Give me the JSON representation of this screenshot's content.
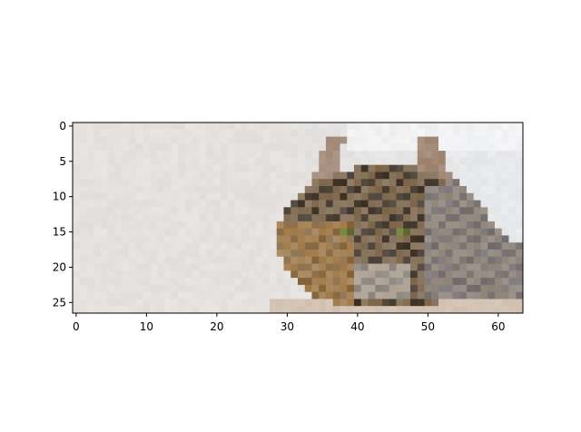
{
  "figure": {
    "image_grid": {
      "columns": 64,
      "rows": 27
    },
    "x_axis": {
      "range": [
        -0.5,
        63.5
      ],
      "ticks": [
        0,
        10,
        20,
        30,
        40,
        50,
        60
      ],
      "tick_labels": [
        "0",
        "10",
        "20",
        "30",
        "40",
        "50",
        "60"
      ]
    },
    "y_axis": {
      "range": [
        -0.5,
        26.5
      ],
      "inverted": true,
      "ticks": [
        0,
        5,
        10,
        15,
        20,
        25
      ],
      "tick_labels": [
        "0",
        "5",
        "10",
        "15",
        "20",
        "25"
      ]
    },
    "subject": "cat-photo",
    "colors": {
      "background_light": "#e4e1de",
      "background_right": "#e8eaee",
      "table_wood": "#cbb49e",
      "fur_dark": "#3a2e22",
      "fur_mid": "#7c6448",
      "fur_orange": "#c08a45",
      "fur_gray": "#9a9aa0",
      "eye_green": "#7a8a40",
      "ear_pink": "#d8b8b0"
    }
  }
}
